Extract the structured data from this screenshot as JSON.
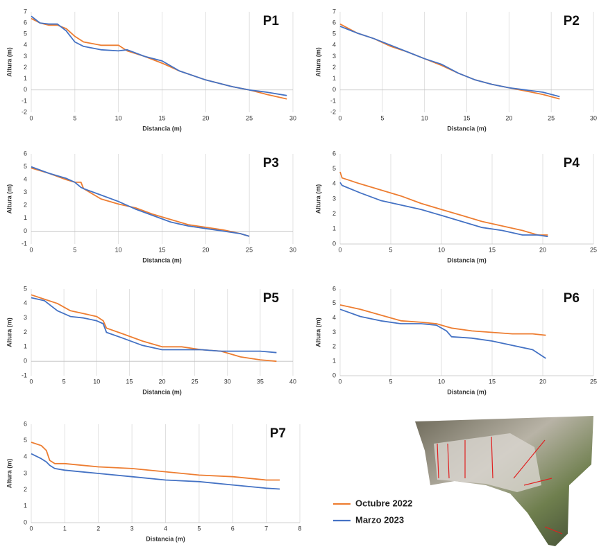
{
  "chart_data": [
    {
      "type": "line",
      "title": "P1",
      "x_label": "Distancia (m)",
      "y_label": "Altura (m)",
      "x": [
        0,
        1,
        2,
        3,
        4,
        5,
        6,
        8,
        10,
        11,
        13,
        15,
        17,
        20,
        23,
        25,
        27,
        29.3
      ],
      "series": [
        {
          "name": "Octubre 2022",
          "color": "#ed7d31",
          "values": [
            6.4,
            6.0,
            5.8,
            5.8,
            5.5,
            4.8,
            4.3,
            4.0,
            4.0,
            3.5,
            3.0,
            2.4,
            1.7,
            0.9,
            0.3,
            0,
            -0.4,
            -0.8
          ]
        },
        {
          "name": "Marzo 2023",
          "color": "#4472c4",
          "values": [
            6.6,
            6.0,
            5.9,
            5.9,
            5.3,
            4.3,
            3.9,
            3.6,
            3.5,
            3.6,
            3.0,
            2.6,
            1.7,
            0.9,
            0.3,
            0,
            -0.2,
            -0.5
          ]
        }
      ],
      "xlim": [
        0,
        30
      ],
      "xticks": [
        0,
        5,
        10,
        15,
        20,
        25,
        30
      ],
      "ylim": [
        -2,
        7
      ],
      "yticks": [
        -2,
        -1,
        0,
        1,
        2,
        3,
        4,
        5,
        6,
        7
      ],
      "grid": "x"
    },
    {
      "type": "line",
      "title": "P2",
      "x_label": "Distancia (m)",
      "y_label": "Altura (m)",
      "x": [
        0,
        2,
        4,
        6,
        8,
        10,
        12,
        14,
        16,
        18,
        20,
        22,
        24,
        26
      ],
      "series": [
        {
          "color": "#ed7d31",
          "values": [
            5.9,
            5.1,
            4.6,
            3.9,
            3.4,
            2.8,
            2.2,
            1.5,
            0.9,
            0.5,
            0.2,
            -0.1,
            -0.4,
            -0.8
          ]
        },
        {
          "color": "#4472c4",
          "values": [
            5.7,
            5.1,
            4.6,
            4.0,
            3.4,
            2.8,
            2.3,
            1.5,
            0.9,
            0.5,
            0.2,
            0,
            -0.2,
            -0.6
          ]
        }
      ],
      "xlim": [
        0,
        30
      ],
      "xticks": [
        0,
        5,
        10,
        15,
        20,
        25,
        30
      ],
      "ylim": [
        -2,
        7
      ],
      "yticks": [
        -2,
        -1,
        0,
        1,
        2,
        3,
        4,
        5,
        6,
        7
      ],
      "grid": "x"
    },
    {
      "type": "line",
      "title": "P3",
      "x_label": "Distancia (m)",
      "y_label": "Altura (m)",
      "x": [
        0,
        2,
        4,
        5,
        5.7,
        6,
        8,
        10,
        12,
        14,
        16,
        18,
        20,
        22,
        24,
        25
      ],
      "series": [
        {
          "color": "#ed7d31",
          "values": [
            4.9,
            4.5,
            4.0,
            3.8,
            3.8,
            3.3,
            2.5,
            2.1,
            1.8,
            1.3,
            0.9,
            0.5,
            0.3,
            0.1,
            -0.2,
            -0.4
          ]
        },
        {
          "color": "#4472c4",
          "values": [
            5.0,
            4.5,
            4.1,
            3.8,
            3.4,
            3.3,
            2.8,
            2.3,
            1.7,
            1.2,
            0.7,
            0.4,
            0.2,
            0,
            -0.2,
            -0.4
          ]
        }
      ],
      "xlim": [
        0,
        30
      ],
      "xticks": [
        0,
        5,
        10,
        15,
        20,
        25,
        30
      ],
      "ylim": [
        -1,
        6
      ],
      "yticks": [
        -1,
        0,
        1,
        2,
        3,
        4,
        5,
        6
      ],
      "grid": "x"
    },
    {
      "type": "line",
      "title": "P4",
      "x_label": "Distancia (m)",
      "y_label": "Altura (m)",
      "x": [
        0,
        0.2,
        2,
        4,
        6,
        8,
        10,
        12,
        14,
        16,
        18,
        19.5,
        20.5
      ],
      "series": [
        {
          "color": "#ed7d31",
          "values": [
            4.8,
            4.4,
            4.0,
            3.6,
            3.2,
            2.7,
            2.3,
            1.9,
            1.5,
            1.2,
            0.9,
            0.6,
            0.6
          ]
        },
        {
          "color": "#4472c4",
          "values": [
            4.1,
            3.9,
            3.4,
            2.9,
            2.6,
            2.3,
            1.9,
            1.5,
            1.1,
            0.9,
            0.6,
            0.6,
            0.5
          ]
        }
      ],
      "xlim": [
        0,
        25
      ],
      "xticks": [
        0,
        5,
        10,
        15,
        20,
        25
      ],
      "ylim": [
        0,
        6
      ],
      "yticks": [
        0,
        1,
        2,
        3,
        4,
        5,
        6
      ],
      "grid": "x"
    },
    {
      "type": "line",
      "title": "P5",
      "x_label": "Distancia (m)",
      "y_label": "Altura (m)",
      "x": [
        0,
        2,
        4,
        6,
        8,
        10,
        11,
        11.5,
        14,
        17,
        20,
        23,
        26,
        29,
        32,
        35,
        37.5
      ],
      "series": [
        {
          "color": "#ed7d31",
          "values": [
            4.6,
            4.3,
            4.0,
            3.5,
            3.3,
            3.1,
            2.8,
            2.3,
            1.9,
            1.4,
            1.0,
            1.0,
            0.8,
            0.7,
            0.3,
            0.1,
            0
          ]
        },
        {
          "color": "#4472c4",
          "values": [
            4.4,
            4.2,
            3.5,
            3.1,
            3.0,
            2.8,
            2.6,
            2.0,
            1.6,
            1.1,
            0.8,
            0.8,
            0.8,
            0.7,
            0.7,
            0.7,
            0.6
          ]
        }
      ],
      "xlim": [
        0,
        40
      ],
      "xticks": [
        0,
        5,
        10,
        15,
        20,
        25,
        30,
        35,
        40
      ],
      "ylim": [
        -1,
        5
      ],
      "yticks": [
        -1,
        0,
        1,
        2,
        3,
        4,
        5
      ],
      "grid": "x"
    },
    {
      "type": "line",
      "title": "P6",
      "x_label": "Distancia (m)",
      "y_label": "Altura (m)",
      "x": [
        0,
        2,
        4,
        6,
        8,
        9.5,
        10.5,
        11,
        13,
        15,
        17,
        19,
        20.3
      ],
      "series": [
        {
          "color": "#ed7d31",
          "values": [
            4.9,
            4.6,
            4.2,
            3.8,
            3.7,
            3.6,
            3.4,
            3.3,
            3.1,
            3.0,
            2.9,
            2.9,
            2.8
          ]
        },
        {
          "color": "#4472c4",
          "values": [
            4.6,
            4.1,
            3.8,
            3.6,
            3.6,
            3.5,
            3.1,
            2.7,
            2.6,
            2.4,
            2.1,
            1.8,
            1.2
          ]
        }
      ],
      "xlim": [
        0,
        25
      ],
      "xticks": [
        0,
        5,
        10,
        15,
        20,
        25
      ],
      "ylim": [
        0,
        6
      ],
      "yticks": [
        0,
        1,
        2,
        3,
        4,
        5,
        6
      ],
      "grid": "x"
    },
    {
      "type": "line",
      "title": "P7",
      "x_label": "Distancia (m)",
      "y_label": "Altura (m)",
      "x": [
        0,
        0.3,
        0.45,
        0.55,
        0.7,
        1,
        2,
        3,
        4,
        5,
        6,
        7,
        7.4
      ],
      "series": [
        {
          "color": "#ed7d31",
          "values": [
            4.9,
            4.7,
            4.4,
            3.8,
            3.6,
            3.6,
            3.4,
            3.3,
            3.1,
            2.9,
            2.8,
            2.6,
            2.6
          ]
        },
        {
          "color": "#4472c4",
          "values": [
            4.2,
            3.9,
            3.7,
            3.5,
            3.3,
            3.2,
            3.0,
            2.8,
            2.6,
            2.5,
            2.3,
            2.1,
            2.05
          ]
        }
      ],
      "xlim": [
        0,
        8
      ],
      "xticks": [
        0,
        1,
        2,
        3,
        4,
        5,
        6,
        7,
        8
      ],
      "ylim": [
        0,
        6
      ],
      "yticks": [
        0,
        1,
        2,
        3,
        4,
        5,
        6
      ],
      "grid": "x"
    }
  ]
}
